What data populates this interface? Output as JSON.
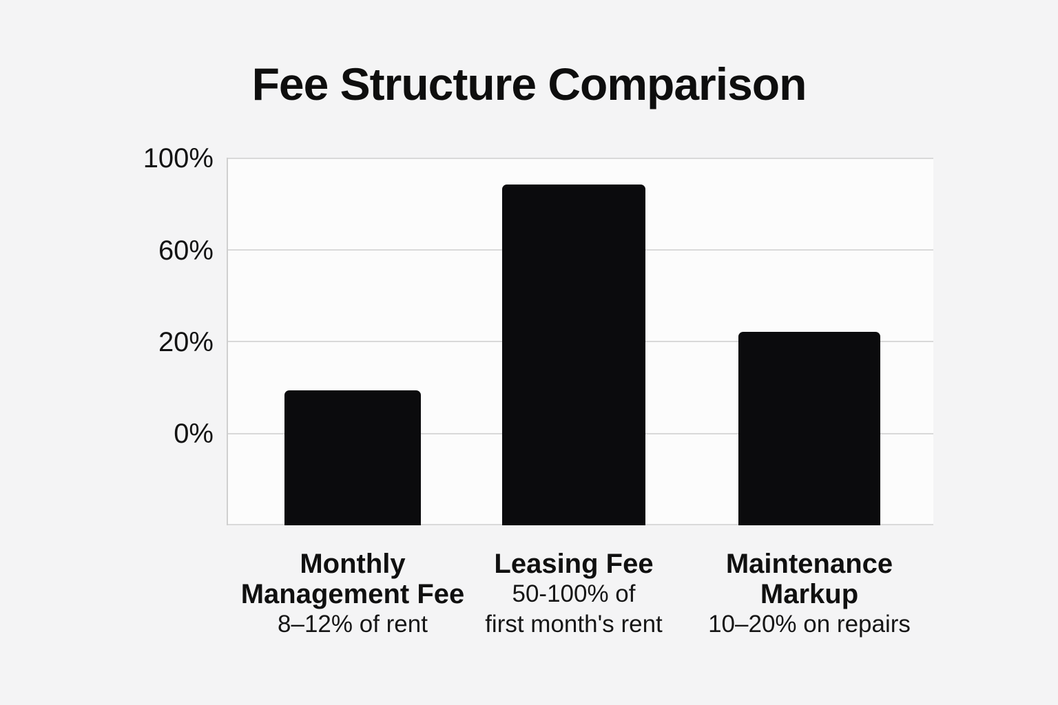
{
  "chart_data": {
    "type": "bar",
    "title": "Fee Structure Comparison",
    "legend": false,
    "grid": true,
    "y_axis": {
      "tick_labels": [
        "100%",
        "60%",
        "20%",
        "0%"
      ],
      "tick_values": [
        100,
        60,
        20,
        0
      ],
      "ticks_evenly_spaced_nonlinear": true,
      "unlabeled_baseline_below_zero": true
    },
    "categories": [
      {
        "name": "Monthly Management Fee",
        "sublabel": "8–12% of rent",
        "approx_value_pct": 9,
        "bar_height_frac": 0.367,
        "label_lines": [
          {
            "text": "Monthly",
            "style": "title"
          },
          {
            "text": "Management Fee",
            "style": "title"
          },
          {
            "text": "8–12% of rent",
            "style": "sub"
          }
        ]
      },
      {
        "name": "Leasing Fee",
        "sublabel": "50-100% of first month's rent",
        "approx_value_pct": 88,
        "bar_height_frac": 0.927,
        "label_lines": [
          {
            "text": "Leasing Fee",
            "style": "title"
          },
          {
            "text": "50-100% of",
            "style": "sub"
          },
          {
            "text": "first month's rent",
            "style": "sub"
          }
        ]
      },
      {
        "name": "Maintenance Markup",
        "sublabel": "10–20% on repairs",
        "approx_value_pct": 22,
        "bar_height_frac": 0.526,
        "label_lines": [
          {
            "text": "Maintenance",
            "style": "title"
          },
          {
            "text": "Markup",
            "style": "title"
          },
          {
            "text": "10–20% on repairs",
            "style": "sub"
          }
        ]
      }
    ],
    "colors": {
      "bar": "#0b0b0d",
      "gridline": "#d9d9d9",
      "axis_line": "#cfcfcf",
      "text": "#111111",
      "plot_background": "#fcfcfc",
      "page_background": "#f4f4f5"
    }
  }
}
